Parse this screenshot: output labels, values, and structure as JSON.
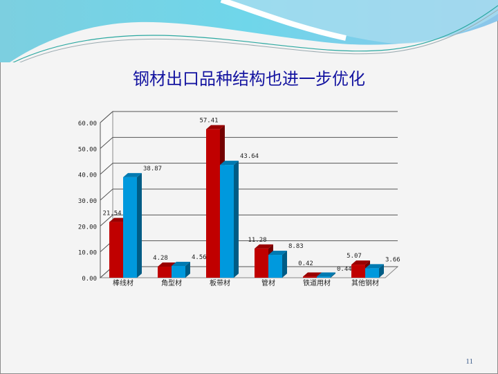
{
  "slide": {
    "title": "钢材出口品种结构也进一步优化",
    "page_number": "11"
  },
  "colors": {
    "series_1": "#c00000",
    "series_2": "#0099dd",
    "title": "#1414a0"
  },
  "chart_data": {
    "type": "bar",
    "style": "3d-clustered",
    "title": "",
    "xlabel": "",
    "ylabel": "",
    "categories": [
      "棒线材",
      "角型材",
      "板带材",
      "管材",
      "铁道用材",
      "其他钢材"
    ],
    "series": [
      {
        "values": [
          21.54,
          4.28,
          57.41,
          11.28,
          0.42,
          5.07
        ],
        "labels": [
          "21.54",
          "4.28",
          "57.41",
          "11.28",
          "0.42",
          "5.07"
        ],
        "color": "#c00000"
      },
      {
        "values": [
          38.87,
          4.56,
          43.64,
          8.83,
          0.44,
          3.66
        ],
        "labels": [
          "38.87",
          "4.56",
          "43.64",
          "8.83",
          "0.44",
          "3.66"
        ],
        "color": "#0099dd"
      }
    ],
    "yticks": [
      "0.00",
      "10.00",
      "20.00",
      "30.00",
      "40.00",
      "50.00",
      "60.00"
    ],
    "ylim": [
      0,
      60
    ],
    "grid": true,
    "legend": "none"
  }
}
